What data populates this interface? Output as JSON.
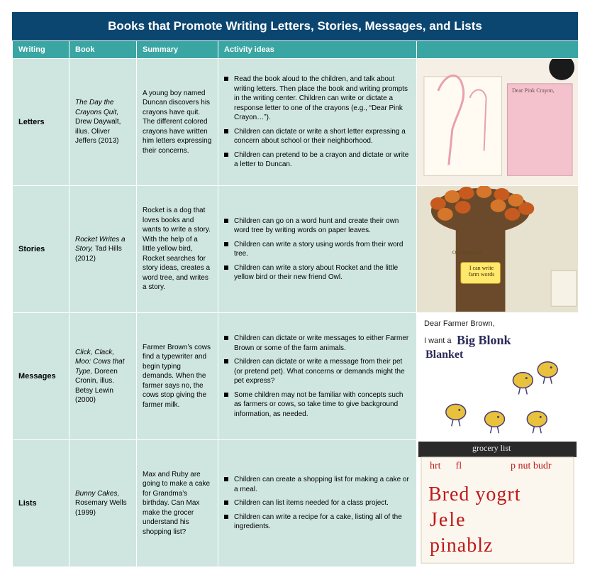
{
  "title": "Books that Promote Writing Letters, Stories, Messages, and Lists",
  "headers": {
    "writing": "Writing",
    "book": "Book",
    "summary": "Summary",
    "activity": "Activity ideas",
    "image": ""
  },
  "col_widths": {
    "writing": 80,
    "book": 95,
    "summary": 115,
    "activity": 280,
    "image": 228
  },
  "colors": {
    "title_bg": "#0b4670",
    "title_text": "#ffffff",
    "header_bg": "#39a6a3",
    "header_text": "#ffffff",
    "cell_bg": "#cfe6e0",
    "cell_text": "#000000",
    "border": "#ffffff"
  },
  "fonts": {
    "title_pt": 17,
    "header_pt": 11,
    "body_pt": 10,
    "writing_pt": 11
  },
  "rows": [
    {
      "writing": "Letters",
      "book_title": "The Day the Crayons Quit,",
      "book_rest": " Drew Daywalt, illus. Oliver Jeffers (2013)",
      "summary": "A young boy named Duncan discovers his crayons have quit. The different colored crayons have written him letters expressing their concerns.",
      "activities": [
        "Read the book aloud to the children, and talk about writing letters. Then place the book and writing prompts in the writing center. Children can write or dictate a response letter to one of the crayons (e.g., “Dear Pink Crayon…”).",
        "Children can dictate or write a short letter expressing a concern about school or their neighborhood.",
        "Children can pretend to be a crayon and dictate or write a letter to Duncan."
      ],
      "image": {
        "caption_a": "Dear Pink Crayon,",
        "bg": "#f5efe6",
        "accent": "#e8a0b0",
        "accent2": "#f4c2cd",
        "ink": "#6b4b4b"
      }
    },
    {
      "writing": "Stories",
      "book_title": "Rocket Writes a Story,",
      "book_rest": " Tad Hills (2012)",
      "summary": "Rocket is a dog that loves books and wants to write a story. With the help of a little yellow bird, Rocket searches for story ideas, creates a word tree, and writes a story.",
      "activities": [
        "Children can go on a word hunt and create their own word tree by writing words on paper leaves.",
        "Children can write a story using words from their word tree.",
        "Children can write a story about Rocket and the little yellow bird or their new friend Owl."
      ],
      "image": {
        "caption_a": "I can write farm words",
        "caption_b": "Our   Word   Tree",
        "bg": "#e7e1cf",
        "trunk": "#6b4a2b",
        "leaf": "#d6762a",
        "leaf2": "#c65a1f",
        "tag_bg": "#ffe86b"
      }
    },
    {
      "writing": "Messages",
      "book_title": "Click, Clack, Moo: Cows that Type,",
      "book_rest": " Doreen Cronin, illus. Betsy Lewin (2000)",
      "summary": "Farmer Brown’s cows find a typewriter and begin typing demands. When the farmer says no, the cows stop giving the farmer milk.",
      "activities": [
        "Children can dictate or write messages to either Farmer Brown or some of the farm animals.",
        "Children can dictate or write a message from their pet (or pretend pet). What concerns or demands might the pet express?",
        "Some children may not be familiar with concepts such as farmers or cows, so take time to give background information, as needed."
      ],
      "image": {
        "caption_a": "Dear Farmer Brown,",
        "caption_b": "I want a",
        "caption_c": "Blanket",
        "caption_d": "Big Blonk",
        "bg": "#ffffff",
        "ink": "#2a2a5a",
        "chick": "#e7c23a",
        "chick_outline": "#4a3a7a"
      }
    },
    {
      "writing": "Lists",
      "book_title": "Bunny Cakes,",
      "book_rest": " Rosemary Wells (1999)",
      "summary": "Max and Ruby are going to make a cake for Grandma’s birthday. Can Max make the grocer understand his shopping list?",
      "activities": [
        "Children can create a shopping list for making a cake or a meal.",
        "Children can list items needed for a class project.",
        "Children can write a recipe for a cake, listing all of the ingredients."
      ],
      "image": {
        "caption_title": "grocery list",
        "caption_a": "Bred yogrt",
        "caption_b": "Jele",
        "caption_c": "pinablz",
        "caption_d": "p nut budr",
        "bg": "#fbf7ee",
        "border": "#2a2a2a",
        "ink": "#c01818",
        "title_ink": "#333333"
      }
    }
  ]
}
